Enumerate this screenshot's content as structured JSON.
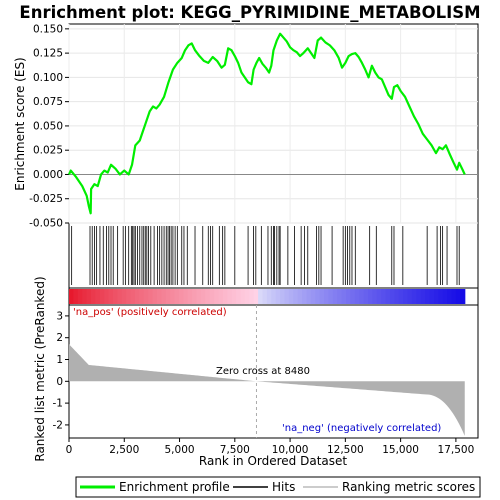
{
  "chart_data": {
    "type": "line",
    "title": "Enrichment plot: KEGG_PYRIMIDINE_METABOLISM",
    "xlabel": "Rank in Ordered Dataset",
    "top_ylabel": "Enrichment score (ES)",
    "bottom_ylabel": "Ranked list metric (PreRanked)",
    "x_range": [
      0,
      18500
    ],
    "x_ticks": [
      0,
      2500,
      5000,
      7500,
      10000,
      12500,
      15000,
      17500
    ],
    "x_tick_labels": [
      "0",
      "2,500",
      "5,000",
      "7,500",
      "10,000",
      "12,500",
      "15,000",
      "17,500"
    ],
    "es_range": [
      -0.05,
      0.155
    ],
    "es_ticks": [
      -0.05,
      -0.025,
      0.0,
      0.025,
      0.05,
      0.075,
      0.1,
      0.125,
      0.15
    ],
    "es_tick_labels": [
      "-0.050",
      "-0.025",
      "0.000",
      "0.025",
      "0.050",
      "0.075",
      "0.100",
      "0.125",
      "0.150"
    ],
    "metric_range": [
      -2.6,
      3.5
    ],
    "metric_ticks": [
      -2,
      -1,
      0,
      1,
      2,
      3
    ],
    "metric_tick_labels": [
      "-2",
      "-1",
      "0",
      "1",
      "2",
      "3"
    ],
    "n_genes": 17900,
    "zero_cross": 8480,
    "zero_cross_label": "Zero cross at 8480",
    "pos_label": "'na_pos' (positively correlated)",
    "neg_label": "'na_neg' (negatively correlated)",
    "es_profile": [
      [
        0,
        0.0
      ],
      [
        80,
        0.004
      ],
      [
        300,
        -0.002
      ],
      [
        600,
        -0.012
      ],
      [
        800,
        -0.022
      ],
      [
        900,
        -0.033
      ],
      [
        980,
        -0.04
      ],
      [
        1000,
        -0.015
      ],
      [
        1150,
        -0.01
      ],
      [
        1300,
        -0.012
      ],
      [
        1450,
        0.0
      ],
      [
        1600,
        0.004
      ],
      [
        1750,
        0.002
      ],
      [
        1900,
        0.01
      ],
      [
        2100,
        0.006
      ],
      [
        2300,
        0.0
      ],
      [
        2500,
        0.004
      ],
      [
        2700,
        0.0
      ],
      [
        2850,
        0.01
      ],
      [
        3000,
        0.03
      ],
      [
        3200,
        0.035
      ],
      [
        3350,
        0.045
      ],
      [
        3500,
        0.055
      ],
      [
        3650,
        0.065
      ],
      [
        3800,
        0.07
      ],
      [
        3950,
        0.068
      ],
      [
        4100,
        0.072
      ],
      [
        4300,
        0.08
      ],
      [
        4500,
        0.095
      ],
      [
        4700,
        0.108
      ],
      [
        4900,
        0.115
      ],
      [
        5100,
        0.12
      ],
      [
        5250,
        0.128
      ],
      [
        5400,
        0.133
      ],
      [
        5550,
        0.135
      ],
      [
        5700,
        0.128
      ],
      [
        5900,
        0.122
      ],
      [
        6100,
        0.117
      ],
      [
        6300,
        0.115
      ],
      [
        6500,
        0.121
      ],
      [
        6700,
        0.117
      ],
      [
        6900,
        0.11
      ],
      [
        7050,
        0.113
      ],
      [
        7200,
        0.13
      ],
      [
        7350,
        0.128
      ],
      [
        7500,
        0.122
      ],
      [
        7650,
        0.115
      ],
      [
        7800,
        0.105
      ],
      [
        7950,
        0.1
      ],
      [
        8100,
        0.095
      ],
      [
        8250,
        0.093
      ],
      [
        8350,
        0.108
      ],
      [
        8480,
        0.115
      ],
      [
        8600,
        0.12
      ],
      [
        8750,
        0.114
      ],
      [
        8900,
        0.11
      ],
      [
        9050,
        0.105
      ],
      [
        9150,
        0.112
      ],
      [
        9250,
        0.128
      ],
      [
        9400,
        0.138
      ],
      [
        9550,
        0.145
      ],
      [
        9700,
        0.141
      ],
      [
        9850,
        0.137
      ],
      [
        10000,
        0.131
      ],
      [
        10150,
        0.128
      ],
      [
        10300,
        0.126
      ],
      [
        10450,
        0.122
      ],
      [
        10600,
        0.125
      ],
      [
        10800,
        0.13
      ],
      [
        10950,
        0.125
      ],
      [
        11100,
        0.12
      ],
      [
        11250,
        0.138
      ],
      [
        11400,
        0.141
      ],
      [
        11600,
        0.136
      ],
      [
        11800,
        0.133
      ],
      [
        12000,
        0.128
      ],
      [
        12200,
        0.12
      ],
      [
        12350,
        0.11
      ],
      [
        12500,
        0.115
      ],
      [
        12650,
        0.122
      ],
      [
        12800,
        0.124
      ],
      [
        12950,
        0.125
      ],
      [
        13100,
        0.121
      ],
      [
        13250,
        0.115
      ],
      [
        13400,
        0.108
      ],
      [
        13550,
        0.1
      ],
      [
        13700,
        0.112
      ],
      [
        13850,
        0.105
      ],
      [
        14000,
        0.1
      ],
      [
        14150,
        0.098
      ],
      [
        14300,
        0.09
      ],
      [
        14450,
        0.082
      ],
      [
        14600,
        0.078
      ],
      [
        14700,
        0.09
      ],
      [
        14850,
        0.092
      ],
      [
        15000,
        0.086
      ],
      [
        15200,
        0.08
      ],
      [
        15400,
        0.07
      ],
      [
        15600,
        0.06
      ],
      [
        15800,
        0.052
      ],
      [
        16000,
        0.042
      ],
      [
        16200,
        0.036
      ],
      [
        16400,
        0.03
      ],
      [
        16600,
        0.022
      ],
      [
        16750,
        0.028
      ],
      [
        16900,
        0.026
      ],
      [
        17050,
        0.03
      ],
      [
        17200,
        0.022
      ],
      [
        17400,
        0.012
      ],
      [
        17550,
        0.005
      ],
      [
        17650,
        0.012
      ],
      [
        17800,
        0.005
      ],
      [
        17900,
        0.0
      ]
    ],
    "hits": [
      120,
      950,
      1050,
      1150,
      1250,
      1400,
      1550,
      1700,
      1800,
      1900,
      2000,
      2200,
      2450,
      2550,
      2700,
      2820,
      2880,
      2940,
      3000,
      3100,
      3200,
      3300,
      3380,
      3450,
      3520,
      3600,
      3700,
      3850,
      4000,
      4100,
      4200,
      4300,
      4400,
      4480,
      4550,
      4620,
      4700,
      4800,
      4900,
      5100,
      5200,
      5350,
      5700,
      6050,
      6300,
      6400,
      6500,
      6800,
      6950,
      7050,
      7500,
      8100,
      8350,
      8450,
      8700,
      9000,
      9150,
      9250,
      9300,
      9400,
      9500,
      9550,
      9900,
      10200,
      10500,
      10650,
      10800,
      11200,
      11300,
      11400,
      11900,
      12400,
      12500,
      12600,
      12700,
      12800,
      12950,
      13600,
      13900,
      14600,
      14700,
      15100,
      16200,
      16650,
      16800,
      16900,
      17100,
      17550,
      17650
    ]
  },
  "legend": {
    "items": [
      {
        "label": "Enrichment profile",
        "color": "#00ee00"
      },
      {
        "label": "Hits",
        "color": "#000000"
      },
      {
        "label": "Ranking metric scores",
        "color": "#bbbbbb"
      }
    ]
  },
  "colors": {
    "es_line": "#00ee00",
    "metric_fill": "#b0b0b0",
    "zero_line": "#aaaaaa",
    "pos_text": "#cc0000",
    "neg_text": "#0000cc"
  }
}
